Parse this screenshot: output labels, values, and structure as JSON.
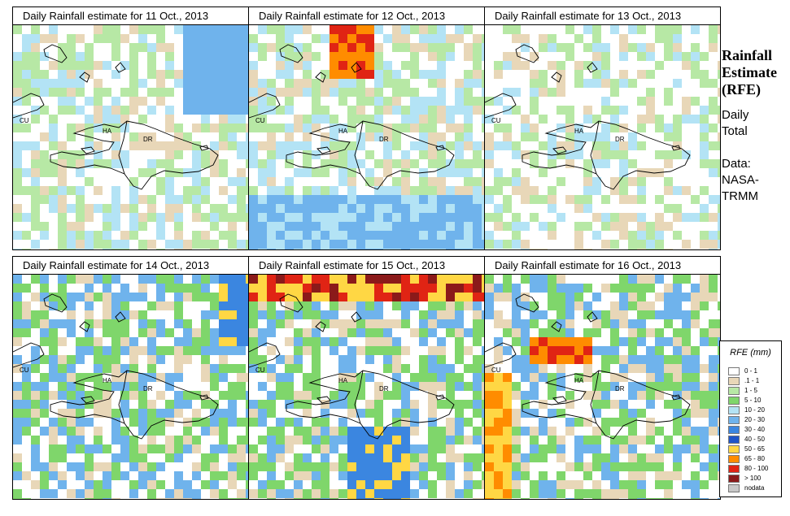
{
  "panels": [
    {
      "title": "Daily Rainfall estimate for  11 Oct., 2013",
      "day": "11"
    },
    {
      "title": "Daily Rainfall estimate for  12 Oct., 2013",
      "day": "12"
    },
    {
      "title": "Daily Rainfall estimate for  13 Oct., 2013",
      "day": "13"
    },
    {
      "title": "Daily Rainfall estimate for  14 Oct., 2013",
      "day": "14"
    },
    {
      "title": "Daily Rainfall estimate for  15 Oct., 2013",
      "day": "15"
    },
    {
      "title": "Daily Rainfall estimate for  16 Oct., 2013",
      "day": "16"
    }
  ],
  "map_labels": {
    "cuba": "CU",
    "haiti": "HA",
    "dominican_republic": "DR"
  },
  "side": {
    "title_lines": [
      "Rainfall",
      "Estimate",
      "(RFE)"
    ],
    "period_lines": [
      "Daily",
      "Total"
    ],
    "source_lines": [
      "Data:",
      "NASA-",
      "TRMM"
    ]
  },
  "legend": {
    "title": "RFE (mm)",
    "classes": [
      {
        "label": "0 - 1",
        "color": "#ffffff"
      },
      {
        "label": ".1 - 1",
        "color": "#e8d7b8"
      },
      {
        "label": "1 - 5",
        "color": "#b7e8a5"
      },
      {
        "label": "5 - 10",
        "color": "#7fd66b"
      },
      {
        "label": "10 - 20",
        "color": "#b3e3f5"
      },
      {
        "label": "20 - 30",
        "color": "#6fb3ec"
      },
      {
        "label": "30 - 40",
        "color": "#3b86e0"
      },
      {
        "label": "40 - 50",
        "color": "#1f55c8"
      },
      {
        "label": "50 - 65",
        "color": "#ffd744"
      },
      {
        "label": "65 - 80",
        "color": "#ff8c00"
      },
      {
        "label": "80 - 100",
        "color": "#e02414"
      },
      {
        "label": "> 100",
        "color": "#8b1a1a"
      },
      {
        "label": "nodata",
        "color": "#c8c8c8"
      }
    ]
  }
}
